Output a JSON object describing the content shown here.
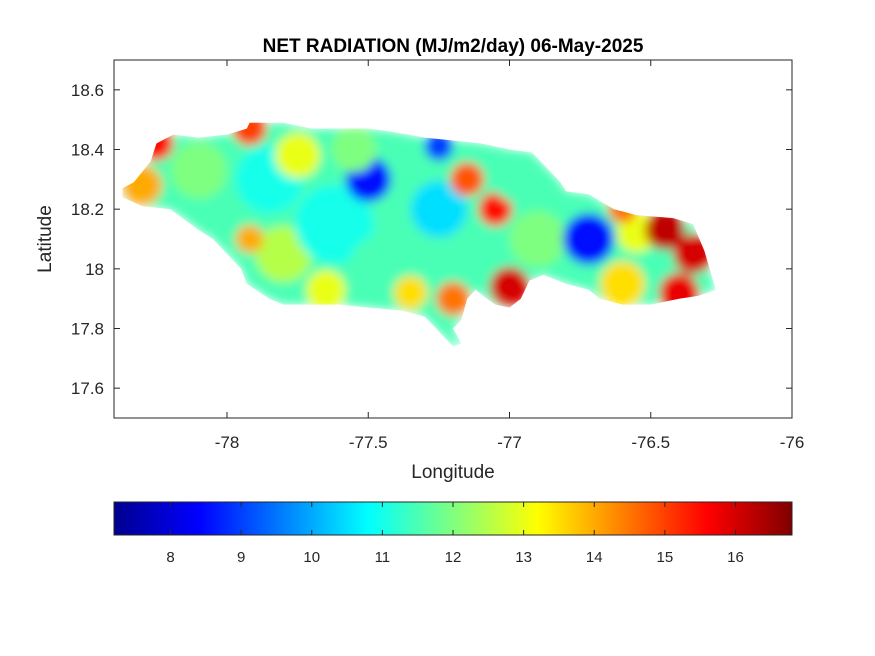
{
  "chart_data": {
    "type": "heatmap",
    "title": "NET RADIATION (MJ/m2/day) 06-May-2025",
    "xlabel": "Longitude",
    "ylabel": "Latitude",
    "xlim": [
      -78.4,
      -76
    ],
    "ylim": [
      17.5,
      18.7
    ],
    "xticks": [
      -78,
      -77.5,
      -77,
      -76.5,
      -76
    ],
    "xtick_labels": [
      "-78",
      "-77.5",
      "-77",
      "-76.5",
      "-76"
    ],
    "yticks": [
      17.6,
      17.8,
      18,
      18.2,
      18.4,
      18.6
    ],
    "ytick_labels": [
      "17.6",
      "17.8",
      "18",
      "18.2",
      "18.4",
      "18.6"
    ],
    "grid": false,
    "colormap": "jet",
    "colorbar": {
      "orientation": "horizontal",
      "location": "bottom",
      "range": [
        7.2,
        16.8
      ],
      "ticks": [
        8,
        9,
        10,
        11,
        12,
        13,
        14,
        15,
        16
      ],
      "tick_labels": [
        "8",
        "9",
        "10",
        "11",
        "12",
        "13",
        "14",
        "15",
        "16"
      ]
    },
    "region_outline": [
      [
        -78.37,
        18.27
      ],
      [
        -78.33,
        18.29
      ],
      [
        -78.27,
        18.36
      ],
      [
        -78.25,
        18.42
      ],
      [
        -78.19,
        18.45
      ],
      [
        -78.1,
        18.44
      ],
      [
        -78.0,
        18.45
      ],
      [
        -77.93,
        18.47
      ],
      [
        -77.92,
        18.49
      ],
      [
        -77.8,
        18.49
      ],
      [
        -77.7,
        18.47
      ],
      [
        -77.6,
        18.47
      ],
      [
        -77.5,
        18.47
      ],
      [
        -77.42,
        18.46
      ],
      [
        -77.3,
        18.44
      ],
      [
        -77.2,
        18.43
      ],
      [
        -77.1,
        18.42
      ],
      [
        -77.0,
        18.4
      ],
      [
        -76.92,
        18.39
      ],
      [
        -76.88,
        18.35
      ],
      [
        -76.82,
        18.29
      ],
      [
        -76.8,
        18.26
      ],
      [
        -76.72,
        18.25
      ],
      [
        -76.63,
        18.2
      ],
      [
        -76.55,
        18.18
      ],
      [
        -76.42,
        18.17
      ],
      [
        -76.35,
        18.15
      ],
      [
        -76.31,
        18.06
      ],
      [
        -76.27,
        17.93
      ],
      [
        -76.33,
        17.91
      ],
      [
        -76.4,
        17.9
      ],
      [
        -76.5,
        17.88
      ],
      [
        -76.6,
        17.88
      ],
      [
        -76.68,
        17.9
      ],
      [
        -76.72,
        17.93
      ],
      [
        -76.8,
        17.95
      ],
      [
        -76.88,
        17.98
      ],
      [
        -76.93,
        17.96
      ],
      [
        -76.96,
        17.9
      ],
      [
        -77.0,
        17.87
      ],
      [
        -77.05,
        17.88
      ],
      [
        -77.08,
        17.9
      ],
      [
        -77.12,
        17.93
      ],
      [
        -77.15,
        17.9
      ],
      [
        -77.17,
        17.83
      ],
      [
        -77.2,
        17.8
      ],
      [
        -77.17,
        17.75
      ],
      [
        -77.2,
        17.74
      ],
      [
        -77.26,
        17.8
      ],
      [
        -77.3,
        17.84
      ],
      [
        -77.38,
        17.86
      ],
      [
        -77.5,
        17.87
      ],
      [
        -77.6,
        17.88
      ],
      [
        -77.7,
        17.88
      ],
      [
        -77.8,
        17.88
      ],
      [
        -77.85,
        17.9
      ],
      [
        -77.93,
        17.95
      ],
      [
        -77.95,
        18.0
      ],
      [
        -78.0,
        18.05
      ],
      [
        -78.05,
        18.1
      ],
      [
        -78.1,
        18.13
      ],
      [
        -78.2,
        18.2
      ],
      [
        -78.3,
        18.21
      ],
      [
        -78.37,
        18.24
      ]
    ],
    "value_field": [
      {
        "lon": -78.25,
        "lat": 18.42,
        "value": 15.5,
        "radius": 0.06
      },
      {
        "lon": -78.3,
        "lat": 18.28,
        "value": 14.0,
        "radius": 0.07
      },
      {
        "lon": -78.1,
        "lat": 18.33,
        "value": 12.0,
        "radius": 0.1
      },
      {
        "lon": -77.92,
        "lat": 18.47,
        "value": 15.0,
        "radius": 0.06
      },
      {
        "lon": -77.85,
        "lat": 18.3,
        "value": 11.0,
        "radius": 0.12
      },
      {
        "lon": -77.75,
        "lat": 18.38,
        "value": 13.0,
        "radius": 0.08
      },
      {
        "lon": -77.8,
        "lat": 18.05,
        "value": 12.5,
        "radius": 0.1
      },
      {
        "lon": -77.62,
        "lat": 18.15,
        "value": 11.0,
        "radius": 0.14
      },
      {
        "lon": -77.5,
        "lat": 18.3,
        "value": 8.5,
        "radius": 0.08
      },
      {
        "lon": -77.55,
        "lat": 18.4,
        "value": 12.0,
        "radius": 0.08
      },
      {
        "lon": -77.45,
        "lat": 18.0,
        "value": 11.5,
        "radius": 0.12
      },
      {
        "lon": -77.35,
        "lat": 17.92,
        "value": 13.5,
        "radius": 0.06
      },
      {
        "lon": -77.2,
        "lat": 17.9,
        "value": 14.5,
        "radius": 0.06
      },
      {
        "lon": -77.25,
        "lat": 18.2,
        "value": 10.5,
        "radius": 0.1
      },
      {
        "lon": -77.25,
        "lat": 18.41,
        "value": 9.0,
        "radius": 0.05
      },
      {
        "lon": -77.15,
        "lat": 18.3,
        "value": 14.8,
        "radius": 0.06
      },
      {
        "lon": -77.05,
        "lat": 18.2,
        "value": 15.5,
        "radius": 0.06
      },
      {
        "lon": -77.0,
        "lat": 17.94,
        "value": 16.0,
        "radius": 0.07
      },
      {
        "lon": -76.98,
        "lat": 18.3,
        "value": 11.5,
        "radius": 0.08
      },
      {
        "lon": -76.9,
        "lat": 18.1,
        "value": 12.0,
        "radius": 0.1
      },
      {
        "lon": -76.72,
        "lat": 18.1,
        "value": 8.5,
        "radius": 0.09
      },
      {
        "lon": -76.6,
        "lat": 17.95,
        "value": 13.5,
        "radius": 0.08
      },
      {
        "lon": -76.55,
        "lat": 18.12,
        "value": 13.0,
        "radius": 0.07
      },
      {
        "lon": -76.45,
        "lat": 18.13,
        "value": 16.2,
        "radius": 0.07
      },
      {
        "lon": -76.35,
        "lat": 18.05,
        "value": 16.0,
        "radius": 0.07
      },
      {
        "lon": -76.4,
        "lat": 17.92,
        "value": 15.8,
        "radius": 0.07
      },
      {
        "lon": -76.6,
        "lat": 18.2,
        "value": 14.5,
        "radius": 0.05
      },
      {
        "lon": -77.65,
        "lat": 17.93,
        "value": 13.0,
        "radius": 0.07
      },
      {
        "lon": -77.92,
        "lat": 18.1,
        "value": 14.0,
        "radius": 0.05
      }
    ],
    "default_value": 11.5,
    "colors": {
      "axes_line": "#262626",
      "background": "#ffffff"
    }
  }
}
